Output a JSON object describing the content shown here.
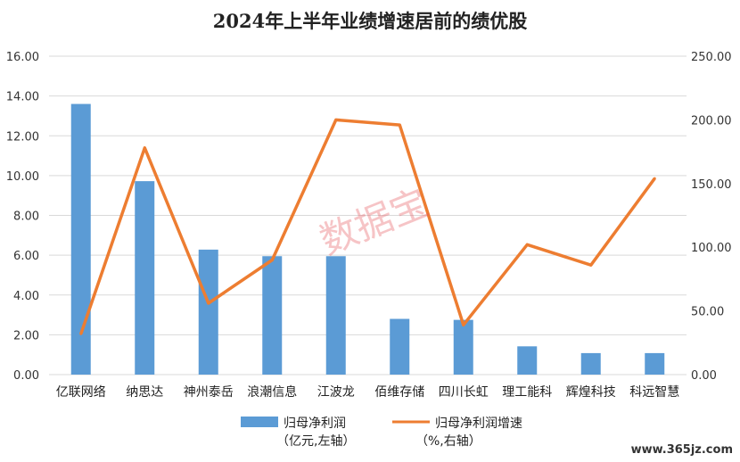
{
  "chart_data": {
    "type": "bar+line",
    "title": "2024年上半年业绩增速居前的绩优股",
    "categories": [
      "亿联网络",
      "纳思达",
      "神州泰岳",
      "浪潮信息",
      "江波龙",
      "佰维存储",
      "四川长虹",
      "理工能科",
      "辉煌科技",
      "科远智慧"
    ],
    "series": [
      {
        "name": "归母净利润",
        "name_sub": "（亿元,左轴）",
        "type": "bar",
        "axis": "left",
        "color": "#5b9bd5",
        "values": [
          13.6,
          9.72,
          6.28,
          5.95,
          5.95,
          2.8,
          2.75,
          1.42,
          1.08,
          1.08
        ]
      },
      {
        "name": "归母净利润增速",
        "name_sub": "（%,右轴）",
        "type": "line",
        "axis": "right",
        "color": "#ed7d31",
        "values": [
          32,
          178,
          56,
          90,
          200,
          196,
          39,
          102,
          86,
          154
        ]
      }
    ],
    "left_axis": {
      "min": 0,
      "max": 16,
      "step": 2,
      "ticks": [
        "0.00",
        "2.00",
        "4.00",
        "6.00",
        "8.00",
        "10.00",
        "12.00",
        "14.00",
        "16.00"
      ]
    },
    "right_axis": {
      "min": 0,
      "max": 250,
      "step": 50,
      "ticks": [
        "0.00",
        "50.00",
        "100.00",
        "150.00",
        "200.00",
        "250.00"
      ]
    },
    "grid": true,
    "legend": "bottom"
  },
  "watermark": "数据宝",
  "site_mark": "www.365jz.com"
}
